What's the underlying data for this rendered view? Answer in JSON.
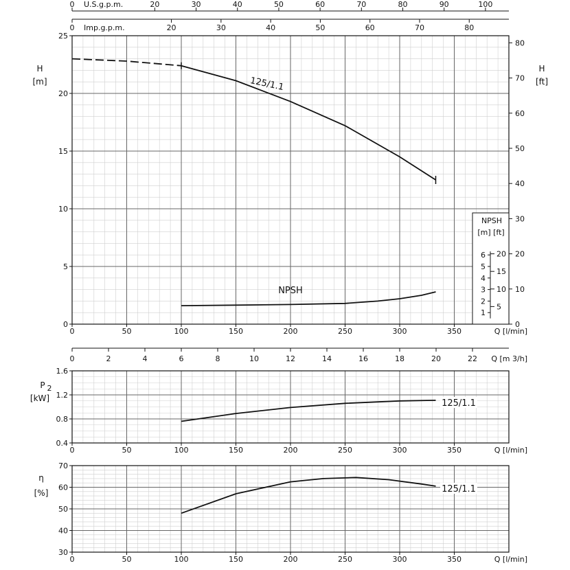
{
  "chart_data": [
    {
      "type": "line",
      "panel": "head",
      "y_label": "H",
      "y_unit": "[m]",
      "y_right_label": "H",
      "y_right_unit": "[ft]",
      "xlim": [
        0,
        400
      ],
      "ylim": [
        0,
        25
      ],
      "x_ticks": [
        0,
        50,
        100,
        150,
        200,
        250,
        300,
        350
      ],
      "y_ticks": [
        0,
        5,
        10,
        15,
        20,
        25
      ],
      "y_right_ticks": [
        0,
        10,
        20,
        30,
        40,
        50,
        60,
        70,
        80
      ],
      "x_unit_label": "Q [l/min]",
      "top_axes": [
        {
          "label": "U.S.g.p.m.",
          "ticks": [
            0,
            20,
            30,
            40,
            50,
            60,
            70,
            80,
            90,
            100
          ]
        },
        {
          "label": "Imp.g.p.m.",
          "ticks": [
            0,
            20,
            30,
            40,
            50,
            60,
            70,
            80
          ]
        }
      ],
      "m3h_axis": {
        "label": "Q [m 3/h]",
        "ticks": [
          0,
          2,
          4,
          6,
          8,
          10,
          12,
          14,
          16,
          18,
          20,
          22
        ]
      },
      "series": [
        {
          "name": "125/1.1",
          "x": [
            0,
            50,
            100,
            150,
            200,
            250,
            300,
            333
          ],
          "y": [
            23.0,
            22.8,
            22.4,
            21.1,
            19.3,
            17.2,
            14.5,
            12.5
          ],
          "dashed_until_x": 100
        },
        {
          "name": "NPSH",
          "x": [
            100,
            150,
            200,
            250,
            280,
            300,
            320,
            333
          ],
          "y": [
            1.6,
            1.65,
            1.7,
            1.8,
            2.0,
            2.2,
            2.5,
            2.8
          ]
        }
      ],
      "npsh_inset": {
        "title": "NPSH",
        "units": "[m]  [ft]",
        "m_ticks": [
          1,
          2,
          3,
          4,
          5,
          6
        ],
        "ft_ticks": [
          5,
          10,
          15,
          20
        ]
      }
    },
    {
      "type": "line",
      "panel": "power",
      "y_label": "P",
      "y_label_sub": "2",
      "y_unit": "[kW]",
      "xlim": [
        0,
        400
      ],
      "ylim": [
        0.4,
        1.6
      ],
      "x_ticks": [
        0,
        50,
        100,
        150,
        200,
        250,
        300,
        350
      ],
      "y_ticks": [
        0.4,
        0.8,
        1.2,
        1.6
      ],
      "x_unit_label": "Q [l/min]",
      "series": [
        {
          "name": "125/1.1",
          "x": [
            100,
            150,
            200,
            250,
            300,
            333
          ],
          "y": [
            0.76,
            0.89,
            0.99,
            1.06,
            1.1,
            1.11
          ]
        }
      ]
    },
    {
      "type": "line",
      "panel": "efficiency",
      "y_label": "η",
      "y_unit": "[%]",
      "xlim": [
        0,
        400
      ],
      "ylim": [
        30,
        70
      ],
      "x_ticks": [
        0,
        50,
        100,
        150,
        200,
        250,
        300,
        350
      ],
      "y_ticks": [
        30,
        40,
        50,
        60,
        70
      ],
      "x_unit_label": "Q [l/min]",
      "series": [
        {
          "name": "125/1.1",
          "x": [
            100,
            150,
            200,
            230,
            260,
            290,
            320,
            333
          ],
          "y": [
            48,
            57,
            62.5,
            64,
            64.5,
            63.5,
            61.5,
            60.5
          ]
        }
      ]
    }
  ]
}
